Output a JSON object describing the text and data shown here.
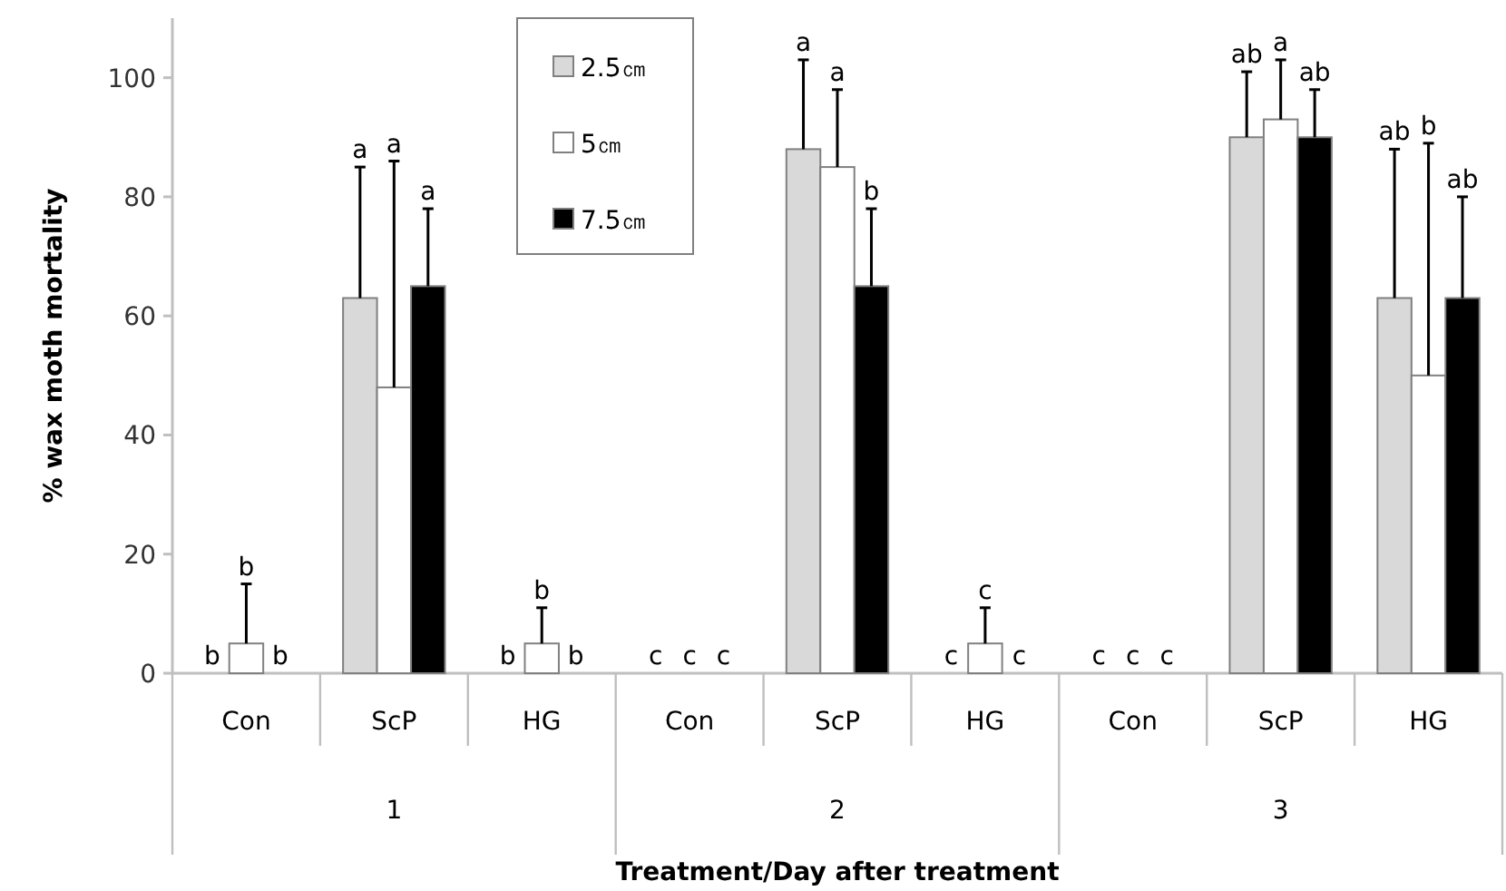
{
  "chart_data": {
    "type": "bar",
    "ylabel": "% wax moth mortality",
    "xlabel": "Treatment/Day after treatment",
    "categories": [
      "Con",
      "ScP",
      "HG",
      "Con",
      "ScP",
      "HG",
      "Con",
      "ScP",
      "HG"
    ],
    "annotations": [
      "1",
      "2",
      "3",
      "b",
      "b",
      "b",
      "a",
      "a",
      "a",
      "b",
      "b",
      "b",
      "c",
      "c",
      "c",
      "a",
      "a",
      "b",
      "c",
      "c",
      "c",
      "c",
      "c",
      "c",
      "ab",
      "a",
      "ab",
      "ab",
      "b",
      "ab"
    ],
    "series": [
      {
        "name": "2.5㎝",
        "color": "#d9d9d9",
        "values": [
          0,
          63,
          0,
          0,
          88,
          0,
          0,
          90,
          63
        ],
        "errors": [
          null,
          22,
          null,
          null,
          15,
          null,
          null,
          11,
          25
        ]
      },
      {
        "name": "5㎝",
        "color": "#ffffff",
        "values": [
          5,
          48,
          5,
          0,
          85,
          5,
          0,
          93,
          50
        ],
        "errors": [
          10,
          38,
          6,
          null,
          13,
          6,
          null,
          10,
          39
        ]
      },
      {
        "name": "7.5㎝",
        "color": "#000000",
        "values": [
          0,
          65,
          0,
          0,
          65,
          0,
          0,
          90,
          63
        ],
        "errors": [
          null,
          13,
          null,
          null,
          13,
          null,
          null,
          8,
          17
        ]
      }
    ],
    "ylim": [
      0,
      110
    ],
    "yticks": [
      0,
      20,
      40,
      60,
      80,
      100
    ],
    "legend": "top"
  }
}
